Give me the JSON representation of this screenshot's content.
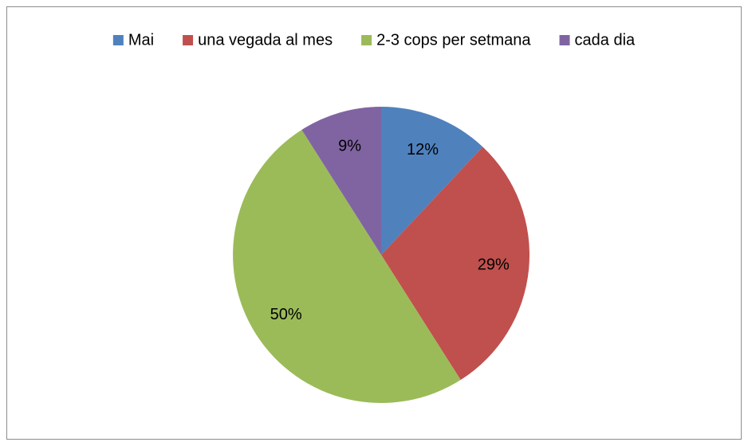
{
  "chart_data": {
    "type": "pie",
    "categories": [
      "Mai",
      "una vegada al mes",
      "2-3 cops per setmana",
      "cada dia"
    ],
    "values": [
      12,
      29,
      50,
      9
    ],
    "value_labels": [
      "12%",
      "29%",
      "50%",
      "9%"
    ],
    "colors": [
      "#4f81bd",
      "#c0504d",
      "#9bbb59",
      "#8064a2"
    ],
    "legend": "top"
  }
}
